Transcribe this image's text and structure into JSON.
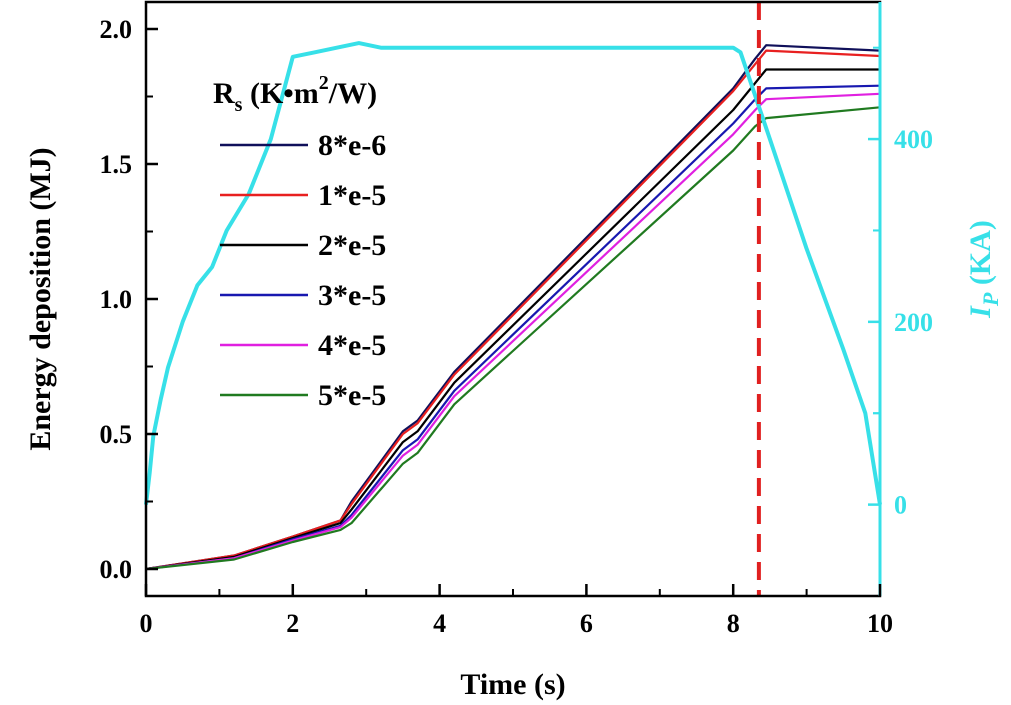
{
  "chart_data": {
    "type": "line",
    "xlabel": "Time (s)",
    "ylabel": "Energy deposition (MJ)",
    "y2label": {
      "main": "I",
      "sub": "P",
      "unit": " (KA)"
    },
    "legend_title": {
      "main": "R",
      "sub": "s",
      "pre_sup": " (K•m",
      "sup": "2",
      "post_sup": "/W)"
    },
    "legend_position": "top-left",
    "grid": false,
    "xlim": [
      0,
      10
    ],
    "ylim": [
      -0.1,
      2.1
    ],
    "y2lim": [
      -100,
      550
    ],
    "xticks": [
      0,
      2,
      4,
      6,
      8,
      10
    ],
    "yticks": [
      "0.0",
      "0.5",
      "1.0",
      "1.5",
      "2.0"
    ],
    "y2ticks": [
      0,
      200,
      400
    ],
    "vline": {
      "x": 8.35,
      "color": "#e02020",
      "style": "dashed"
    },
    "series": [
      {
        "name": "8*e-6",
        "axis": "left",
        "color": "#10105a",
        "x": [
          0,
          1.2,
          2,
          2.65,
          2.8,
          3.5,
          3.7,
          4.2,
          8,
          8.3,
          8.45,
          10
        ],
        "y": [
          0,
          0.05,
          0.12,
          0.18,
          0.25,
          0.51,
          0.55,
          0.73,
          1.78,
          1.89,
          1.94,
          1.92
        ]
      },
      {
        "name": "1*e-5",
        "axis": "left",
        "color": "#e82020",
        "x": [
          0,
          1.2,
          2,
          2.65,
          2.8,
          3.5,
          3.7,
          4.2,
          8,
          8.3,
          8.45,
          10
        ],
        "y": [
          0,
          0.05,
          0.12,
          0.18,
          0.24,
          0.5,
          0.54,
          0.72,
          1.77,
          1.87,
          1.92,
          1.9
        ]
      },
      {
        "name": "2*e-5",
        "axis": "left",
        "color": "#000000",
        "x": [
          0,
          1.2,
          2,
          2.65,
          2.8,
          3.5,
          3.7,
          4.2,
          8,
          8.3,
          8.45,
          10
        ],
        "y": [
          0,
          0.045,
          0.115,
          0.17,
          0.22,
          0.47,
          0.51,
          0.69,
          1.7,
          1.8,
          1.85,
          1.85
        ]
      },
      {
        "name": "3*e-5",
        "axis": "left",
        "color": "#1818b0",
        "x": [
          0,
          1.2,
          2,
          2.65,
          2.8,
          3.5,
          3.7,
          4.2,
          8,
          8.3,
          8.45,
          10
        ],
        "y": [
          0,
          0.04,
          0.11,
          0.16,
          0.2,
          0.44,
          0.48,
          0.66,
          1.65,
          1.74,
          1.78,
          1.79
        ]
      },
      {
        "name": "4*e-5",
        "axis": "left",
        "color": "#e020e0",
        "x": [
          0,
          1.2,
          2,
          2.65,
          2.8,
          3.5,
          3.7,
          4.2,
          8,
          8.3,
          8.45,
          10
        ],
        "y": [
          0,
          0.04,
          0.105,
          0.155,
          0.19,
          0.42,
          0.46,
          0.64,
          1.61,
          1.7,
          1.74,
          1.76
        ]
      },
      {
        "name": "5*e-5",
        "axis": "left",
        "color": "#207a20",
        "x": [
          0,
          1.2,
          2,
          2.65,
          2.8,
          3.5,
          3.7,
          4.2,
          8,
          8.3,
          8.45,
          10
        ],
        "y": [
          0,
          0.035,
          0.1,
          0.145,
          0.17,
          0.39,
          0.43,
          0.61,
          1.55,
          1.64,
          1.67,
          1.71
        ]
      },
      {
        "name": "",
        "axis": "right",
        "color": "#37e0e8",
        "x": [
          0,
          0.05,
          0.1,
          0.2,
          0.3,
          0.5,
          0.7,
          0.9,
          1.1,
          1.4,
          1.7,
          1.9,
          2.0,
          2.3,
          2.6,
          2.9,
          3.2,
          3.5,
          4,
          5,
          6,
          7,
          8,
          8.1,
          8.5,
          9,
          9.5,
          9.8,
          10
        ],
        "y": [
          0,
          35,
          75,
          115,
          150,
          200,
          240,
          260,
          300,
          340,
          400,
          460,
          490,
          495,
          500,
          505,
          500,
          500,
          500,
          500,
          500,
          500,
          500,
          495,
          400,
          280,
          170,
          100,
          0
        ]
      }
    ]
  }
}
